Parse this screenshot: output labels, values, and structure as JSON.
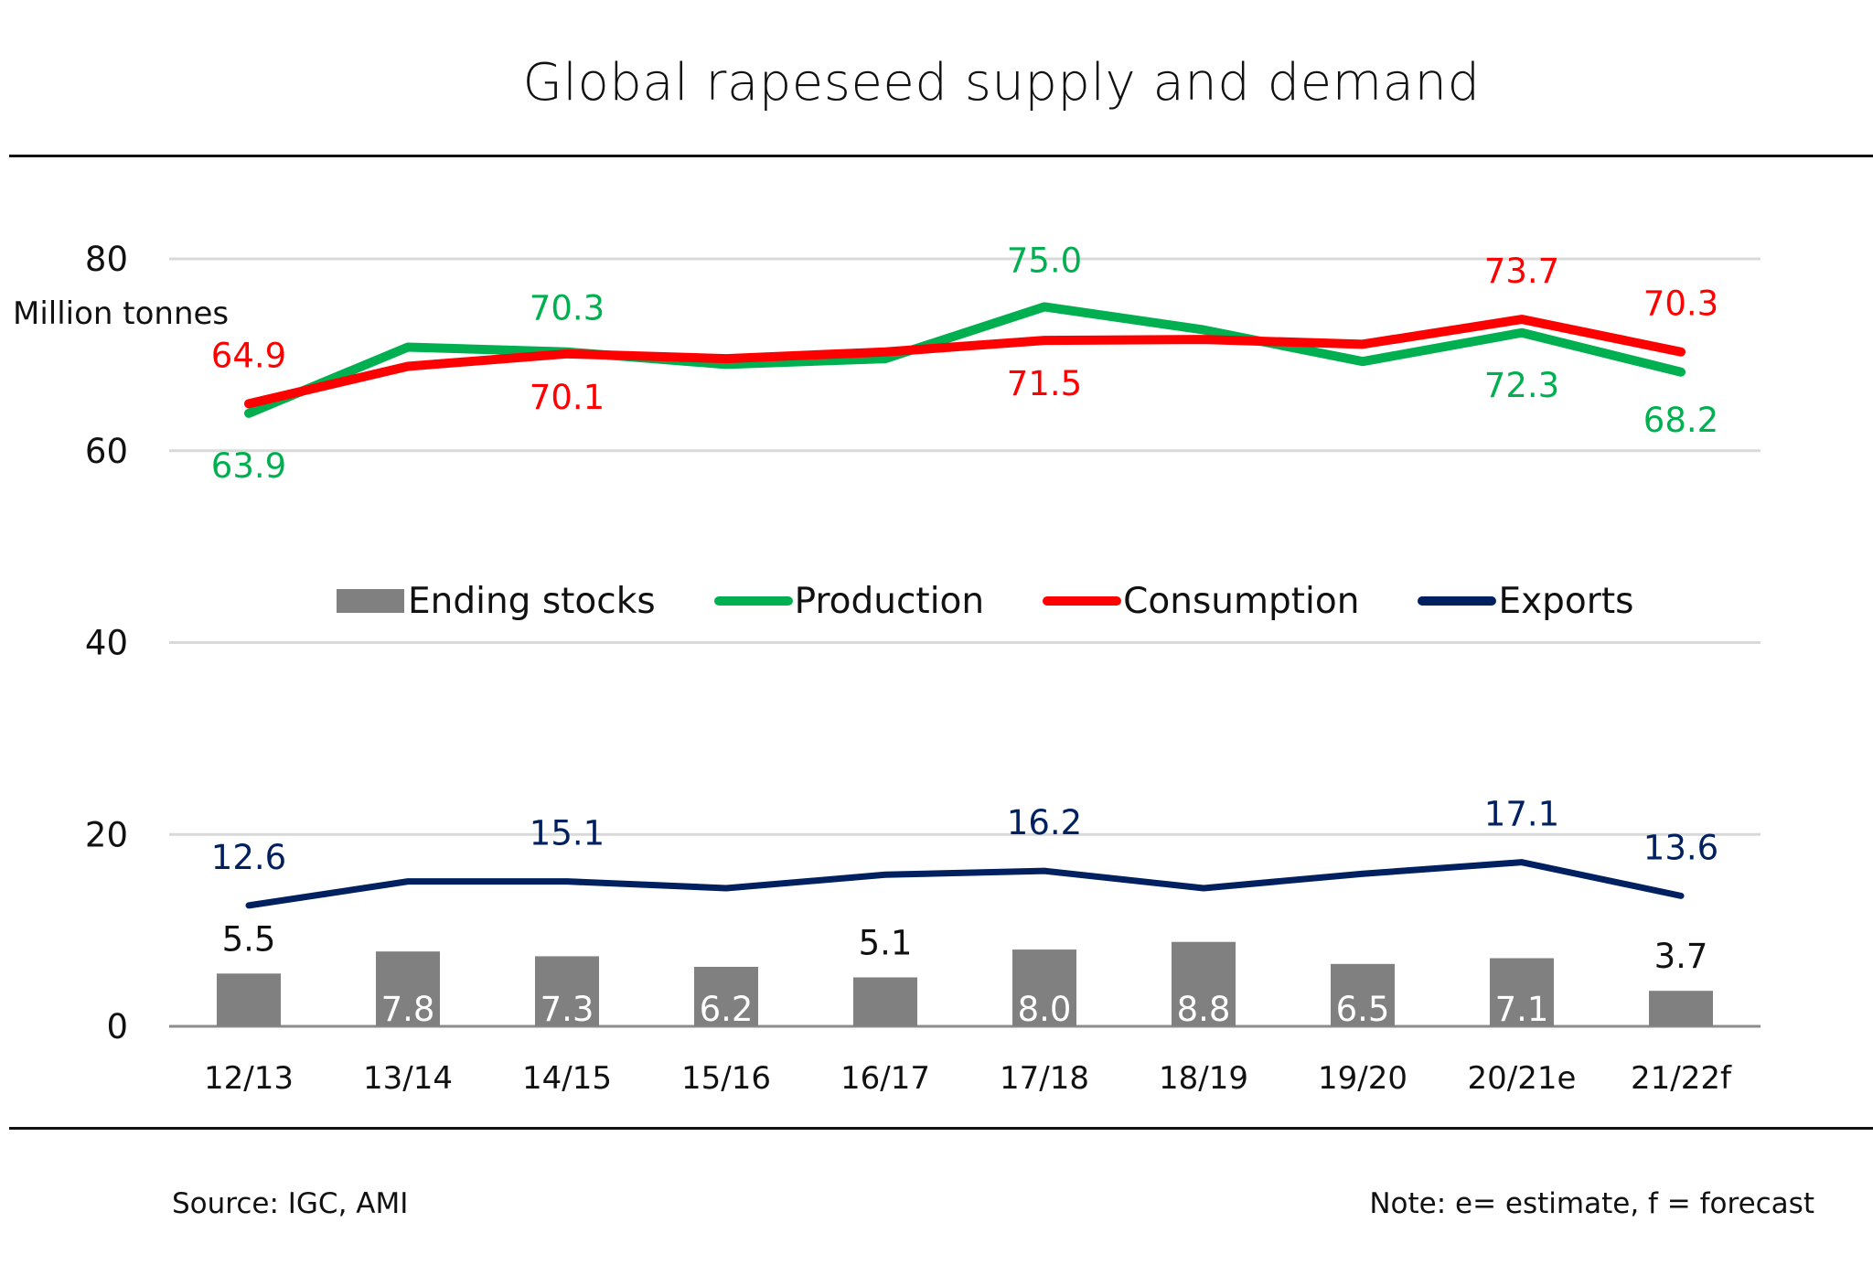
{
  "chart_data": {
    "type": "bar",
    "title": "Global rapeseed supply and demand",
    "xlabel": "",
    "ylabel": "Million tonnes",
    "ylim": [
      0,
      80
    ],
    "yticks": [
      0,
      20,
      40,
      60,
      80
    ],
    "ytick_labels": [
      "0",
      "20",
      "40",
      "60",
      "80"
    ],
    "grid": true,
    "legend_position": "center",
    "categories": [
      "12/13",
      "13/14",
      "14/15",
      "15/16",
      "16/17",
      "17/18",
      "18/19",
      "19/20",
      "20/21e",
      "21/22f"
    ],
    "series": [
      {
        "name": "Ending stocks",
        "type": "bar",
        "color": "#808080",
        "values": [
          5.5,
          7.8,
          7.3,
          6.2,
          5.1,
          8.0,
          8.8,
          6.5,
          7.1,
          3.7
        ],
        "data_labels": [
          "5.5",
          "7.8",
          "7.3",
          "6.2",
          "5.1",
          "8.0",
          "8.8",
          "6.5",
          "7.1",
          "3.7"
        ],
        "label_color": "#ffffff",
        "outside_label_color": "#111111"
      },
      {
        "name": "Production",
        "type": "line",
        "color": "#00B050",
        "values": [
          63.9,
          70.8,
          70.3,
          69.0,
          69.6,
          75.0,
          72.6,
          69.3,
          72.3,
          68.2
        ],
        "data_labels": [
          "63.9",
          "",
          "70.3",
          "",
          "",
          "75.0",
          "",
          "",
          "72.3",
          "68.2"
        ]
      },
      {
        "name": "Consumption",
        "type": "line",
        "color": "#FF0000",
        "values": [
          64.9,
          68.8,
          70.1,
          69.6,
          70.3,
          71.5,
          71.6,
          71.1,
          73.7,
          70.3
        ],
        "data_labels": [
          "64.9",
          "",
          "70.1",
          "",
          "",
          "71.5",
          "",
          "",
          "73.7",
          "70.3"
        ]
      },
      {
        "name": "Exports",
        "type": "line",
        "color": "#002060",
        "values": [
          12.6,
          15.1,
          15.1,
          14.4,
          15.8,
          16.2,
          14.4,
          15.9,
          17.1,
          13.6
        ],
        "data_labels": [
          "12.6",
          "",
          "15.1",
          "",
          "",
          "16.2",
          "",
          "",
          "17.1",
          "13.6"
        ]
      }
    ]
  },
  "footer": {
    "source": "Source: IGC, AMI",
    "note": "Note: e= estimate, f = forecast"
  }
}
